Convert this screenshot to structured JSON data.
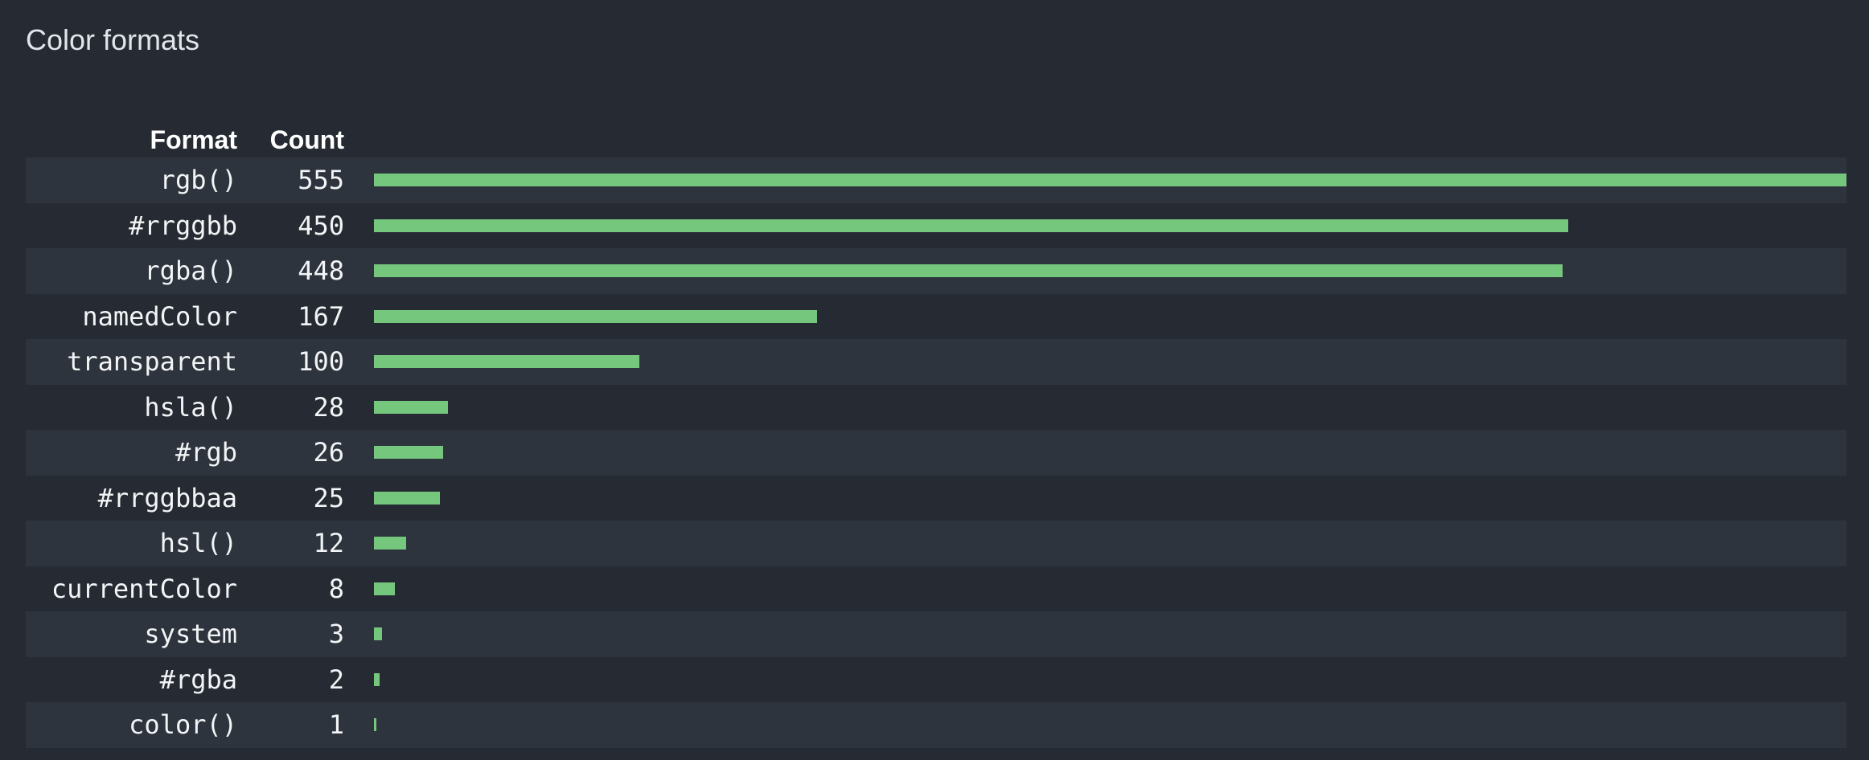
{
  "title": "Color formats",
  "chart_data": {
    "type": "bar",
    "orientation": "horizontal",
    "title": "Color formats",
    "columns": [
      "Format",
      "Count"
    ],
    "categories": [
      "rgb()",
      "#rrggbb",
      "rgba()",
      "namedColor",
      "transparent",
      "hsla()",
      "#rgb",
      "#rrggbbaa",
      "hsl()",
      "currentColor",
      "system",
      "#rgba",
      "color()"
    ],
    "values": [
      555,
      450,
      448,
      167,
      100,
      28,
      26,
      25,
      12,
      8,
      3,
      2,
      1
    ],
    "xlim": [
      0,
      555
    ],
    "grid": false,
    "legend": "none",
    "value_labels_position": "left-column",
    "row_striping": "odd-rows-highlighted"
  },
  "theme": {
    "page_bg": "#262b33",
    "stripe_bg": "#2e343d",
    "bar_color": "#76c77e",
    "title_color": "#e2e5e9",
    "header_color": "#ffffff",
    "text_color": "#f2f4f6"
  }
}
